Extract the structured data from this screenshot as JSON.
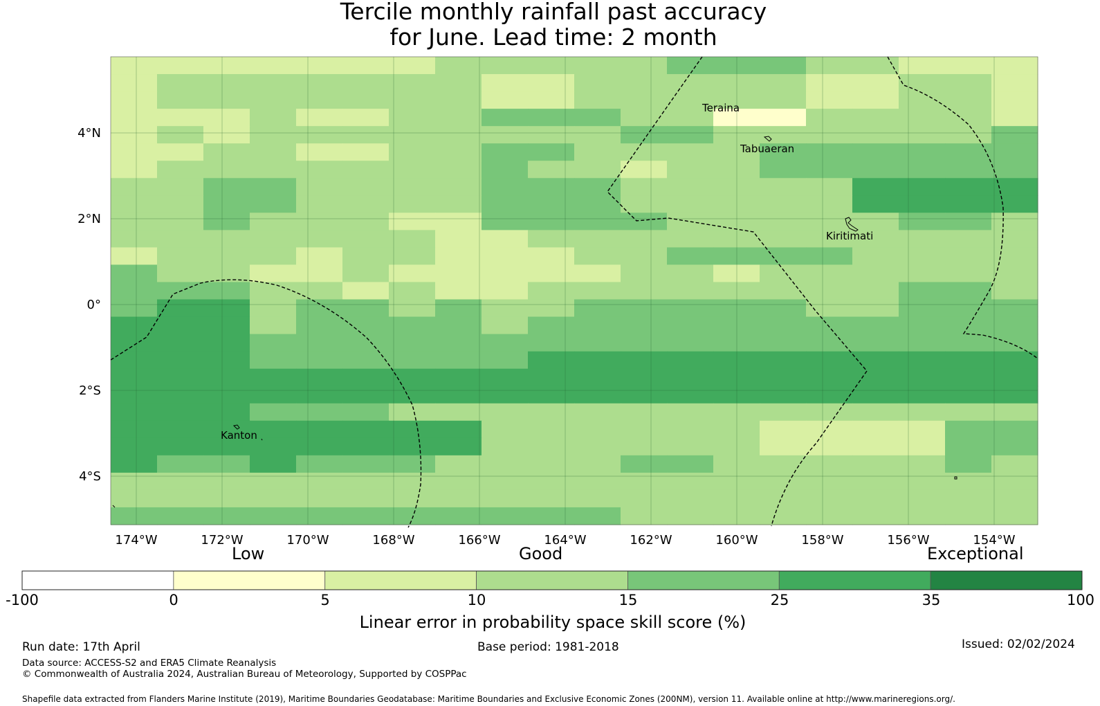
{
  "title": {
    "line1": "Tercile monthly rainfall past accuracy",
    "line2": "for June. Lead time: 2 month"
  },
  "map": {
    "lon_range": [
      -174.6,
      -153.0
    ],
    "lat_range": [
      -5.2,
      5.6
    ],
    "x_tick_labels": [
      "174°W",
      "172°W",
      "170°W",
      "168°W",
      "166°W",
      "164°W",
      "162°W",
      "160°W",
      "158°W",
      "156°W",
      "154°W"
    ],
    "y_tick_labels": [
      "4°N",
      "2°N",
      "0°",
      "2°S",
      "4°S"
    ],
    "place_labels": [
      "Teraina",
      "Tabuaeran",
      "Kiritimati",
      "Kanton"
    ],
    "grid_classes": [
      "22222223333344433222",
      "23333333223333322332",
      "23333333223333322332",
      "22232233444331133332",
      "23233333333443333334",
      "22332233443333444444",
      "23333333433233444444",
      "33443333444333335555",
      "33443333444333335555",
      "33433322444433333443",
      "33333332233333333333",
      "23332332223344443333",
      "43322322222332333333",
      "44433232233333333443",
      "45534434334444433444",
      "55534444344444444444",
      "55544444444444444444",
      "55544444455555555555",
      "55555555555555555555",
      "55555555555555555555",
      "55544433333333333333",
      "55555555333333222244",
      "55555555333333222244",
      "54454443333443333343",
      "33333333333333333333",
      "33333333333333333333",
      "44444444444333333333"
    ]
  },
  "colorbar": {
    "category_labels": [
      "Low",
      "Good",
      "Exceptional"
    ],
    "tick_labels": [
      "-100",
      "0",
      "5",
      "10",
      "15",
      "25",
      "35",
      "100"
    ],
    "colors": [
      "#ffffff",
      "#ffffcc",
      "#d9f0a3",
      "#addd8e",
      "#78c679",
      "#41ab5d",
      "#238443"
    ],
    "title": "Linear error in probability space skill score (%)"
  },
  "footer": {
    "run_date": "Run date: 17th April",
    "base_period": "Base period: 1981-2018",
    "issued": "Issued: 02/02/2024",
    "data_source": "Data source: ACCESS-S2 and ERA5 Climate Reanalysis",
    "copyright": "© Commonwealth of Australia 2024, Australian Bureau of Meteorology, Supported by COSPPac",
    "shapefile": "Shapefile data extracted from Flanders Marine Institute (2019), Maritime Boundaries Geodatabase: Maritime Boundaries and Exclusive Economic Zones (200NM), version 11. Available online at http://www.marineregions.org/."
  }
}
